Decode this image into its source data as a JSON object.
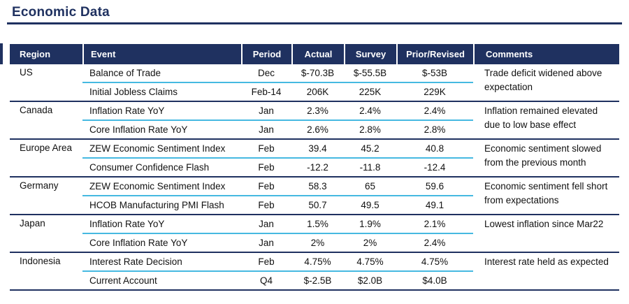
{
  "page": {
    "title": "Economic Data"
  },
  "colors": {
    "navy": "#1F3160",
    "row_separator_blue": "#46B9E1",
    "header_text": "#FFFFFF",
    "body_text": "#111111"
  },
  "table": {
    "headers": [
      "Region",
      "Event",
      "Period",
      "Actual",
      "Survey",
      "Prior/Revised",
      "Comments"
    ],
    "regions": [
      {
        "region": "US",
        "comment": "Trade deficit widened above expectation",
        "rows": [
          {
            "event": "Balance of Trade",
            "period": "Dec",
            "actual": "$-70.3B",
            "survey": "$-55.5B",
            "prior": "$-53B"
          },
          {
            "event": "Initial Jobless Claims",
            "period": "Feb-14",
            "actual": "206K",
            "survey": "225K",
            "prior": "229K"
          }
        ]
      },
      {
        "region": "Canada",
        "comment": "Inflation remained elevated due to low base effect",
        "rows": [
          {
            "event": "Inflation Rate YoY",
            "period": "Jan",
            "actual": "2.3%",
            "survey": "2.4%",
            "prior": "2.4%"
          },
          {
            "event": "Core Inflation Rate YoY",
            "period": "Jan",
            "actual": "2.6%",
            "survey": "2.8%",
            "prior": "2.8%"
          }
        ]
      },
      {
        "region": "Europe Area",
        "comment": "Economic sentiment slowed from the previous month",
        "rows": [
          {
            "event": "ZEW Economic Sentiment Index",
            "period": "Feb",
            "actual": "39.4",
            "survey": "45.2",
            "prior": "40.8"
          },
          {
            "event": "Consumer Confidence Flash",
            "period": "Feb",
            "actual": "-12.2",
            "survey": "-11.8",
            "prior": "-12.4"
          }
        ]
      },
      {
        "region": "Germany",
        "comment": "Economic sentiment fell short from expectations",
        "rows": [
          {
            "event": "ZEW Economic Sentiment Index",
            "period": "Feb",
            "actual": "58.3",
            "survey": "65",
            "prior": "59.6"
          },
          {
            "event": "HCOB Manufacturing PMI Flash",
            "period": "Feb",
            "actual": "50.7",
            "survey": "49.5",
            "prior": "49.1"
          }
        ]
      },
      {
        "region": "Japan",
        "comment": "Lowest inflation since Mar22",
        "rows": [
          {
            "event": "Inflation Rate YoY",
            "period": "Jan",
            "actual": "1.5%",
            "survey": "1.9%",
            "prior": "2.1%"
          },
          {
            "event": "Core Inflation Rate YoY",
            "period": "Jan",
            "actual": "2%",
            "survey": "2%",
            "prior": "2.4%"
          }
        ]
      },
      {
        "region": "Indonesia",
        "comment": "Interest rate held as expected",
        "rows": [
          {
            "event": "Interest Rate Decision",
            "period": "Feb",
            "actual": "4.75%",
            "survey": "4.75%",
            "prior": "4.75%"
          },
          {
            "event": "Current Account",
            "period": "Q4",
            "actual": "$-2.5B",
            "survey": "$2.0B",
            "prior": "$4.0B"
          }
        ]
      }
    ]
  }
}
